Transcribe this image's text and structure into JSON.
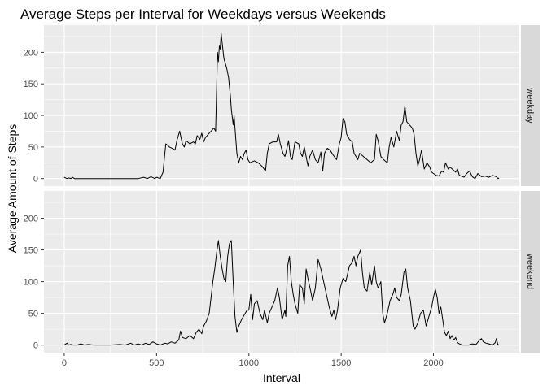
{
  "chart_data": {
    "type": "line",
    "title": "Average Steps per Interval for Weekdays versus Weekends",
    "xlabel": "Interval",
    "ylabel": "Average Amount of Steps",
    "xlim": [
      -110,
      2465
    ],
    "ylim": [
      -12,
      243
    ],
    "x_ticks": [
      0,
      500,
      1000,
      1500,
      2000
    ],
    "y_ticks": [
      0,
      50,
      100,
      150,
      200
    ],
    "grid": true,
    "facets": [
      "weekday",
      "weekend"
    ],
    "series": [
      {
        "facet": "weekday",
        "color": "#000000",
        "points": [
          [
            0,
            2
          ],
          [
            15,
            0
          ],
          [
            25,
            1
          ],
          [
            35,
            0
          ],
          [
            45,
            2
          ],
          [
            55,
            0
          ],
          [
            100,
            0
          ],
          [
            200,
            0
          ],
          [
            300,
            0
          ],
          [
            400,
            0
          ],
          [
            430,
            2
          ],
          [
            450,
            0
          ],
          [
            470,
            3
          ],
          [
            490,
            0
          ],
          [
            500,
            2
          ],
          [
            520,
            0
          ],
          [
            535,
            10
          ],
          [
            540,
            25
          ],
          [
            550,
            55
          ],
          [
            570,
            50
          ],
          [
            590,
            47
          ],
          [
            600,
            45
          ],
          [
            610,
            60
          ],
          [
            625,
            75
          ],
          [
            640,
            55
          ],
          [
            650,
            50
          ],
          [
            660,
            60
          ],
          [
            680,
            55
          ],
          [
            700,
            58
          ],
          [
            710,
            55
          ],
          [
            720,
            68
          ],
          [
            735,
            62
          ],
          [
            745,
            72
          ],
          [
            755,
            58
          ],
          [
            765,
            65
          ],
          [
            780,
            70
          ],
          [
            795,
            75
          ],
          [
            810,
            80
          ],
          [
            820,
            75
          ],
          [
            825,
            140
          ],
          [
            830,
            200
          ],
          [
            835,
            185
          ],
          [
            840,
            210
          ],
          [
            845,
            205
          ],
          [
            850,
            230
          ],
          [
            855,
            215
          ],
          [
            865,
            190
          ],
          [
            880,
            175
          ],
          [
            890,
            160
          ],
          [
            900,
            130
          ],
          [
            905,
            110
          ],
          [
            915,
            85
          ],
          [
            920,
            100
          ],
          [
            925,
            80
          ],
          [
            935,
            40
          ],
          [
            945,
            25
          ],
          [
            955,
            35
          ],
          [
            965,
            30
          ],
          [
            975,
            40
          ],
          [
            985,
            45
          ],
          [
            995,
            30
          ],
          [
            1005,
            25
          ],
          [
            1030,
            28
          ],
          [
            1050,
            25
          ],
          [
            1070,
            20
          ],
          [
            1090,
            12
          ],
          [
            1100,
            40
          ],
          [
            1110,
            55
          ],
          [
            1130,
            58
          ],
          [
            1150,
            58
          ],
          [
            1160,
            70
          ],
          [
            1170,
            55
          ],
          [
            1185,
            40
          ],
          [
            1195,
            35
          ],
          [
            1200,
            40
          ],
          [
            1215,
            60
          ],
          [
            1225,
            35
          ],
          [
            1235,
            30
          ],
          [
            1250,
            58
          ],
          [
            1270,
            55
          ],
          [
            1280,
            40
          ],
          [
            1290,
            35
          ],
          [
            1300,
            50
          ],
          [
            1320,
            20
          ],
          [
            1330,
            35
          ],
          [
            1345,
            45
          ],
          [
            1360,
            30
          ],
          [
            1375,
            25
          ],
          [
            1390,
            42
          ],
          [
            1400,
            12
          ],
          [
            1410,
            40
          ],
          [
            1425,
            48
          ],
          [
            1440,
            45
          ],
          [
            1455,
            38
          ],
          [
            1475,
            30
          ],
          [
            1490,
            55
          ],
          [
            1500,
            65
          ],
          [
            1510,
            95
          ],
          [
            1520,
            90
          ],
          [
            1530,
            70
          ],
          [
            1545,
            62
          ],
          [
            1560,
            58
          ],
          [
            1570,
            40
          ],
          [
            1580,
            35
          ],
          [
            1590,
            30
          ],
          [
            1600,
            40
          ],
          [
            1620,
            35
          ],
          [
            1640,
            30
          ],
          [
            1660,
            25
          ],
          [
            1680,
            30
          ],
          [
            1690,
            70
          ],
          [
            1700,
            60
          ],
          [
            1715,
            35
          ],
          [
            1730,
            30
          ],
          [
            1750,
            25
          ],
          [
            1760,
            50
          ],
          [
            1770,
            65
          ],
          [
            1785,
            50
          ],
          [
            1800,
            75
          ],
          [
            1815,
            60
          ],
          [
            1825,
            85
          ],
          [
            1835,
            90
          ],
          [
            1845,
            115
          ],
          [
            1855,
            90
          ],
          [
            1870,
            85
          ],
          [
            1885,
            80
          ],
          [
            1895,
            70
          ],
          [
            1905,
            40
          ],
          [
            1915,
            20
          ],
          [
            1925,
            30
          ],
          [
            1935,
            45
          ],
          [
            1950,
            15
          ],
          [
            1965,
            25
          ],
          [
            1980,
            18
          ],
          [
            1990,
            10
          ],
          [
            2000,
            8
          ],
          [
            2015,
            5
          ],
          [
            2030,
            4
          ],
          [
            2045,
            12
          ],
          [
            2055,
            10
          ],
          [
            2065,
            25
          ],
          [
            2080,
            15
          ],
          [
            2090,
            18
          ],
          [
            2105,
            14
          ],
          [
            2120,
            10
          ],
          [
            2130,
            15
          ],
          [
            2140,
            5
          ],
          [
            2150,
            4
          ],
          [
            2165,
            2
          ],
          [
            2180,
            8
          ],
          [
            2195,
            12
          ],
          [
            2210,
            3
          ],
          [
            2225,
            0
          ],
          [
            2240,
            8
          ],
          [
            2260,
            3
          ],
          [
            2280,
            4
          ],
          [
            2300,
            2
          ],
          [
            2320,
            5
          ],
          [
            2340,
            3
          ],
          [
            2350,
            0
          ],
          [
            2355,
            1
          ]
        ]
      },
      {
        "facet": "weekend",
        "color": "#000000",
        "points": [
          [
            0,
            0
          ],
          [
            15,
            3
          ],
          [
            25,
            0
          ],
          [
            35,
            1
          ],
          [
            50,
            0
          ],
          [
            70,
            0
          ],
          [
            90,
            2
          ],
          [
            110,
            0
          ],
          [
            130,
            1
          ],
          [
            160,
            0
          ],
          [
            200,
            0
          ],
          [
            250,
            0
          ],
          [
            300,
            1
          ],
          [
            330,
            0
          ],
          [
            360,
            3
          ],
          [
            380,
            0
          ],
          [
            400,
            2
          ],
          [
            420,
            0
          ],
          [
            440,
            3
          ],
          [
            460,
            1
          ],
          [
            480,
            5
          ],
          [
            500,
            2
          ],
          [
            520,
            0
          ],
          [
            545,
            3
          ],
          [
            560,
            2
          ],
          [
            580,
            5
          ],
          [
            600,
            3
          ],
          [
            620,
            8
          ],
          [
            630,
            22
          ],
          [
            640,
            12
          ],
          [
            660,
            10
          ],
          [
            680,
            15
          ],
          [
            700,
            10
          ],
          [
            715,
            20
          ],
          [
            730,
            25
          ],
          [
            745,
            18
          ],
          [
            755,
            30
          ],
          [
            770,
            38
          ],
          [
            785,
            50
          ],
          [
            795,
            75
          ],
          [
            805,
            100
          ],
          [
            815,
            120
          ],
          [
            825,
            145
          ],
          [
            835,
            165
          ],
          [
            845,
            140
          ],
          [
            855,
            120
          ],
          [
            865,
            105
          ],
          [
            875,
            100
          ],
          [
            885,
            140
          ],
          [
            895,
            160
          ],
          [
            905,
            165
          ],
          [
            915,
            100
          ],
          [
            925,
            45
          ],
          [
            935,
            20
          ],
          [
            945,
            30
          ],
          [
            960,
            40
          ],
          [
            980,
            50
          ],
          [
            990,
            55
          ],
          [
            1000,
            55
          ],
          [
            1010,
            80
          ],
          [
            1020,
            40
          ],
          [
            1030,
            65
          ],
          [
            1045,
            70
          ],
          [
            1060,
            50
          ],
          [
            1075,
            40
          ],
          [
            1085,
            55
          ],
          [
            1100,
            35
          ],
          [
            1110,
            50
          ],
          [
            1125,
            60
          ],
          [
            1140,
            70
          ],
          [
            1155,
            90
          ],
          [
            1165,
            75
          ],
          [
            1180,
            40
          ],
          [
            1195,
            55
          ],
          [
            1200,
            45
          ],
          [
            1210,
            125
          ],
          [
            1220,
            140
          ],
          [
            1230,
            100
          ],
          [
            1240,
            80
          ],
          [
            1250,
            65
          ],
          [
            1265,
            50
          ],
          [
            1275,
            95
          ],
          [
            1290,
            90
          ],
          [
            1300,
            65
          ],
          [
            1310,
            120
          ],
          [
            1320,
            105
          ],
          [
            1335,
            85
          ],
          [
            1345,
            70
          ],
          [
            1360,
            90
          ],
          [
            1375,
            135
          ],
          [
            1390,
            120
          ],
          [
            1405,
            100
          ],
          [
            1420,
            80
          ],
          [
            1435,
            60
          ],
          [
            1450,
            45
          ],
          [
            1460,
            55
          ],
          [
            1470,
            40
          ],
          [
            1480,
            55
          ],
          [
            1495,
            90
          ],
          [
            1510,
            105
          ],
          [
            1525,
            100
          ],
          [
            1545,
            125
          ],
          [
            1560,
            130
          ],
          [
            1570,
            140
          ],
          [
            1580,
            125
          ],
          [
            1590,
            140
          ],
          [
            1605,
            150
          ],
          [
            1615,
            115
          ],
          [
            1625,
            90
          ],
          [
            1640,
            85
          ],
          [
            1655,
            115
          ],
          [
            1665,
            95
          ],
          [
            1680,
            125
          ],
          [
            1690,
            100
          ],
          [
            1700,
            90
          ],
          [
            1715,
            100
          ],
          [
            1725,
            50
          ],
          [
            1735,
            35
          ],
          [
            1750,
            50
          ],
          [
            1765,
            70
          ],
          [
            1780,
            80
          ],
          [
            1790,
            90
          ],
          [
            1800,
            75
          ],
          [
            1815,
            70
          ],
          [
            1825,
            80
          ],
          [
            1840,
            115
          ],
          [
            1850,
            120
          ],
          [
            1860,
            90
          ],
          [
            1875,
            70
          ],
          [
            1890,
            30
          ],
          [
            1900,
            25
          ],
          [
            1915,
            35
          ],
          [
            1930,
            50
          ],
          [
            1945,
            55
          ],
          [
            1960,
            30
          ],
          [
            1975,
            45
          ],
          [
            1990,
            60
          ],
          [
            2000,
            75
          ],
          [
            2010,
            88
          ],
          [
            2020,
            75
          ],
          [
            2030,
            50
          ],
          [
            2040,
            60
          ],
          [
            2050,
            40
          ],
          [
            2060,
            20
          ],
          [
            2070,
            15
          ],
          [
            2080,
            22
          ],
          [
            2090,
            10
          ],
          [
            2100,
            15
          ],
          [
            2110,
            8
          ],
          [
            2120,
            12
          ],
          [
            2130,
            4
          ],
          [
            2140,
            2
          ],
          [
            2155,
            0
          ],
          [
            2170,
            0
          ],
          [
            2190,
            0
          ],
          [
            2210,
            2
          ],
          [
            2230,
            1
          ],
          [
            2250,
            8
          ],
          [
            2260,
            10
          ],
          [
            2270,
            5
          ],
          [
            2285,
            3
          ],
          [
            2300,
            2
          ],
          [
            2320,
            0
          ],
          [
            2335,
            4
          ],
          [
            2340,
            10
          ],
          [
            2345,
            5
          ],
          [
            2350,
            0
          ],
          [
            2355,
            1
          ]
        ]
      }
    ]
  }
}
